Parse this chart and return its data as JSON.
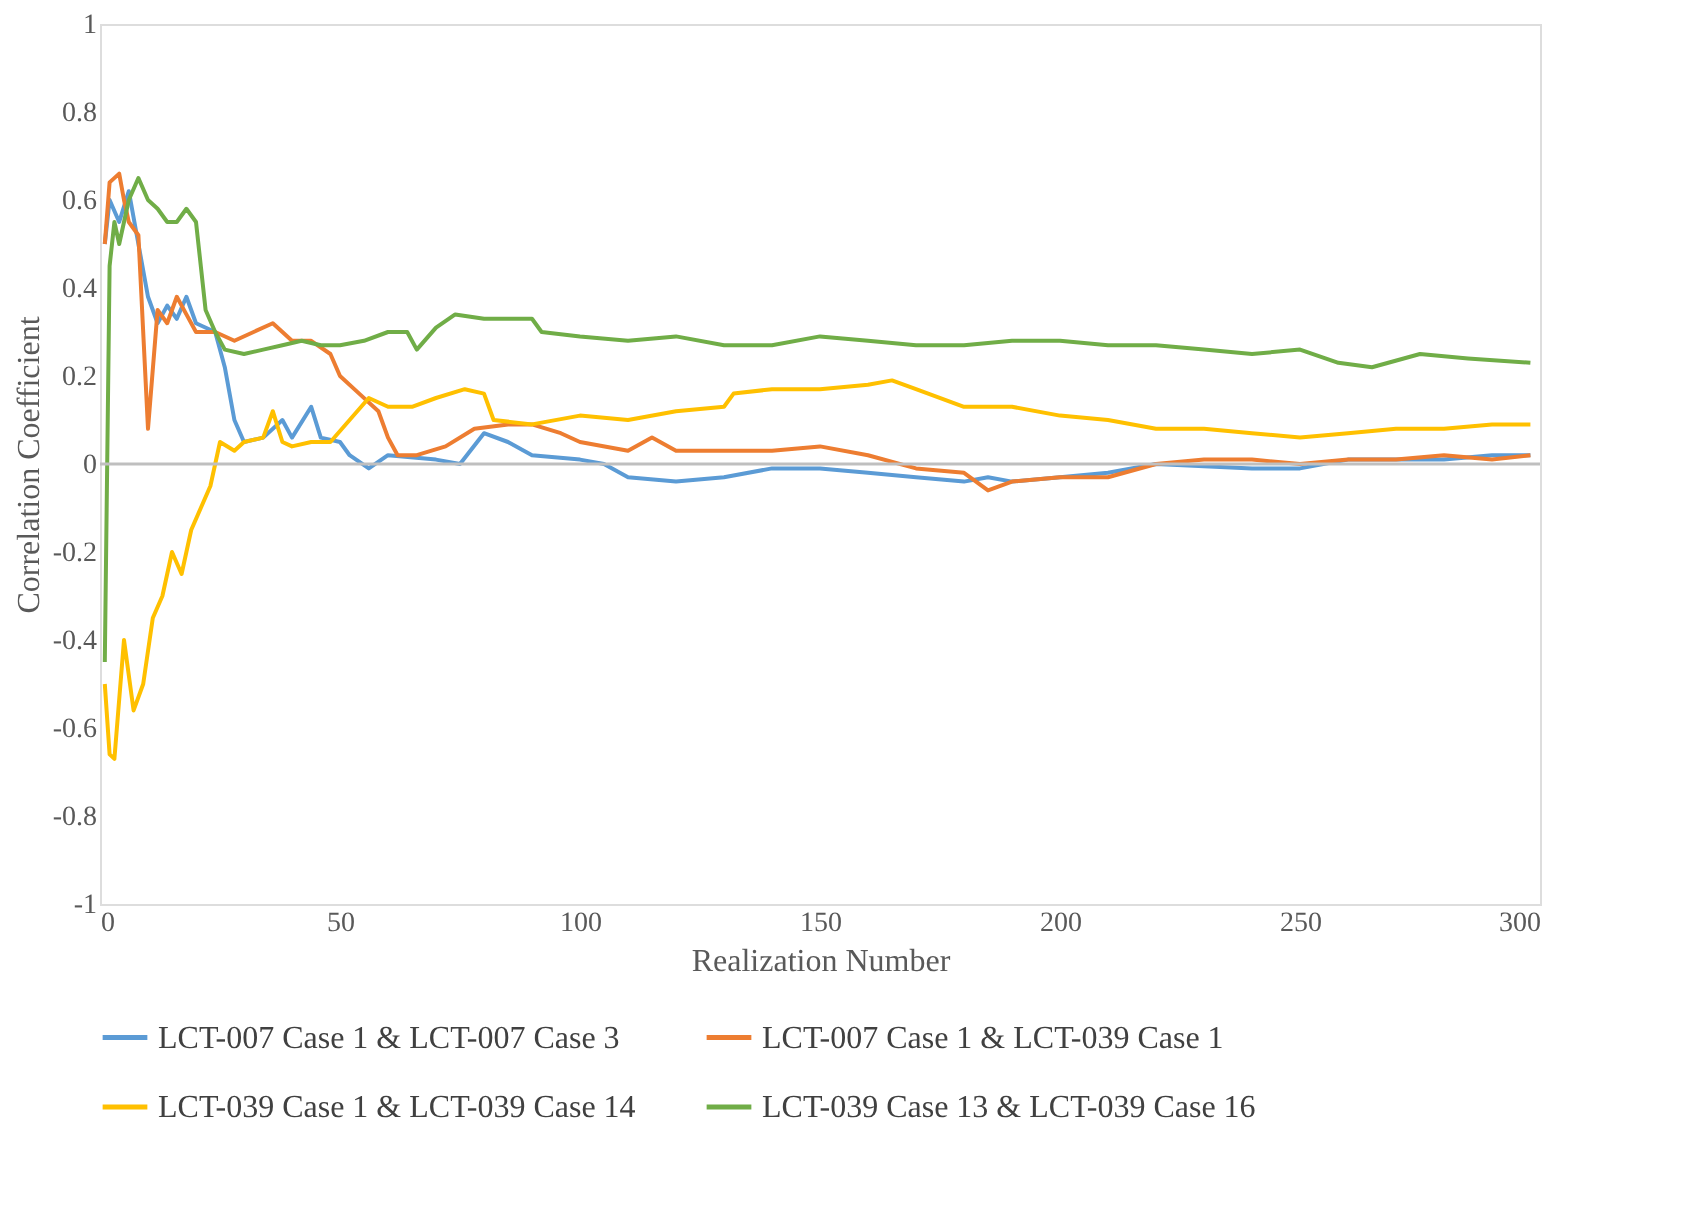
{
  "chart_data": {
    "type": "line",
    "xlabel": "Realization Number",
    "ylabel": "Correlation Coefficient",
    "xlim": [
      0,
      300
    ],
    "xticks": [
      0,
      50,
      100,
      150,
      200,
      250,
      300
    ],
    "ylim": [
      -1,
      1
    ],
    "yticks": [
      -1,
      -0.8,
      -0.6,
      -0.4,
      -0.2,
      0,
      0.2,
      0.4,
      0.6,
      0.8,
      1
    ],
    "grid": false,
    "legend": "bottom",
    "marker": "none",
    "line_style": "solid",
    "ref_lines": [
      {
        "axis": "y",
        "value": 0,
        "color": "#bfbfbf"
      }
    ],
    "series": [
      {
        "name": "LCT-007 Case 1 & LCT-007 Case 3",
        "color": "#5b9bd5",
        "x": [
          1,
          2,
          4,
          6,
          8,
          10,
          12,
          14,
          16,
          18,
          20,
          24,
          26,
          28,
          30,
          34,
          38,
          40,
          44,
          46,
          50,
          52,
          56,
          60,
          70,
          75,
          80,
          85,
          90,
          100,
          105,
          110,
          120,
          130,
          140,
          150,
          160,
          170,
          180,
          185,
          190,
          200,
          210,
          220,
          240,
          250,
          260,
          270,
          280,
          290,
          298
        ],
        "values": [
          0.5,
          0.6,
          0.55,
          0.62,
          0.5,
          0.38,
          0.32,
          0.36,
          0.33,
          0.38,
          0.32,
          0.3,
          0.22,
          0.1,
          0.05,
          0.06,
          0.1,
          0.06,
          0.13,
          0.06,
          0.05,
          0.02,
          -0.01,
          0.02,
          0.01,
          0.0,
          0.07,
          0.05,
          0.02,
          0.01,
          0.0,
          -0.03,
          -0.04,
          -0.03,
          -0.01,
          -0.01,
          -0.02,
          -0.03,
          -0.04,
          -0.03,
          -0.04,
          -0.03,
          -0.02,
          0.0,
          -0.01,
          -0.01,
          0.01,
          0.01,
          0.01,
          0.02,
          0.02
        ]
      },
      {
        "name": "LCT-007 Case 1 & LCT-039 Case 1",
        "color": "#ed7d31",
        "x": [
          1,
          2,
          4,
          5,
          6,
          8,
          10,
          12,
          14,
          16,
          18,
          20,
          24,
          28,
          32,
          36,
          40,
          44,
          48,
          50,
          54,
          58,
          60,
          62,
          66,
          72,
          78,
          85,
          90,
          96,
          100,
          110,
          115,
          120,
          140,
          150,
          160,
          170,
          180,
          185,
          190,
          200,
          210,
          220,
          230,
          240,
          250,
          260,
          270,
          280,
          290,
          298
        ],
        "values": [
          0.5,
          0.64,
          0.66,
          0.6,
          0.55,
          0.52,
          0.08,
          0.35,
          0.32,
          0.38,
          0.34,
          0.3,
          0.3,
          0.28,
          0.3,
          0.32,
          0.28,
          0.28,
          0.25,
          0.2,
          0.16,
          0.12,
          0.06,
          0.02,
          0.02,
          0.04,
          0.08,
          0.09,
          0.09,
          0.07,
          0.05,
          0.03,
          0.06,
          0.03,
          0.03,
          0.04,
          0.02,
          -0.01,
          -0.02,
          -0.06,
          -0.04,
          -0.03,
          -0.03,
          0.0,
          0.01,
          0.01,
          0.0,
          0.01,
          0.01,
          0.02,
          0.01,
          0.02
        ]
      },
      {
        "name": "LCT-039 Case 1 & LCT-039 Case 14",
        "color": "#ffc000",
        "x": [
          1,
          2,
          3,
          5,
          7,
          9,
          11,
          13,
          15,
          17,
          19,
          21,
          23,
          25,
          28,
          30,
          34,
          36,
          38,
          40,
          44,
          48,
          52,
          56,
          60,
          65,
          70,
          76,
          80,
          82,
          90,
          100,
          110,
          120,
          130,
          132,
          140,
          150,
          160,
          165,
          170,
          180,
          190,
          200,
          210,
          220,
          230,
          240,
          250,
          260,
          270,
          280,
          290,
          298
        ],
        "values": [
          -0.5,
          -0.66,
          -0.67,
          -0.4,
          -0.56,
          -0.5,
          -0.35,
          -0.3,
          -0.2,
          -0.25,
          -0.15,
          -0.1,
          -0.05,
          0.05,
          0.03,
          0.05,
          0.06,
          0.12,
          0.05,
          0.04,
          0.05,
          0.05,
          0.1,
          0.15,
          0.13,
          0.13,
          0.15,
          0.17,
          0.16,
          0.1,
          0.09,
          0.11,
          0.1,
          0.12,
          0.13,
          0.16,
          0.17,
          0.17,
          0.18,
          0.19,
          0.17,
          0.13,
          0.13,
          0.11,
          0.1,
          0.08,
          0.08,
          0.07,
          0.06,
          0.07,
          0.08,
          0.08,
          0.09,
          0.09
        ]
      },
      {
        "name": "LCT-039 Case 13 & LCT-039 Case 16",
        "color": "#70ad47",
        "x": [
          1,
          2,
          3,
          4,
          6,
          8,
          10,
          12,
          14,
          16,
          18,
          20,
          22,
          24,
          26,
          30,
          34,
          38,
          42,
          46,
          50,
          55,
          60,
          64,
          66,
          70,
          74,
          80,
          90,
          92,
          100,
          110,
          120,
          130,
          140,
          150,
          160,
          170,
          180,
          190,
          200,
          210,
          220,
          230,
          240,
          250,
          258,
          265,
          275,
          285,
          298
        ],
        "values": [
          -0.45,
          0.45,
          0.55,
          0.5,
          0.6,
          0.65,
          0.6,
          0.58,
          0.55,
          0.55,
          0.58,
          0.55,
          0.35,
          0.3,
          0.26,
          0.25,
          0.26,
          0.27,
          0.28,
          0.27,
          0.27,
          0.28,
          0.3,
          0.3,
          0.26,
          0.31,
          0.34,
          0.33,
          0.33,
          0.3,
          0.29,
          0.28,
          0.29,
          0.27,
          0.27,
          0.29,
          0.28,
          0.27,
          0.27,
          0.28,
          0.28,
          0.27,
          0.27,
          0.26,
          0.25,
          0.26,
          0.23,
          0.22,
          0.25,
          0.24,
          0.23
        ]
      }
    ]
  }
}
